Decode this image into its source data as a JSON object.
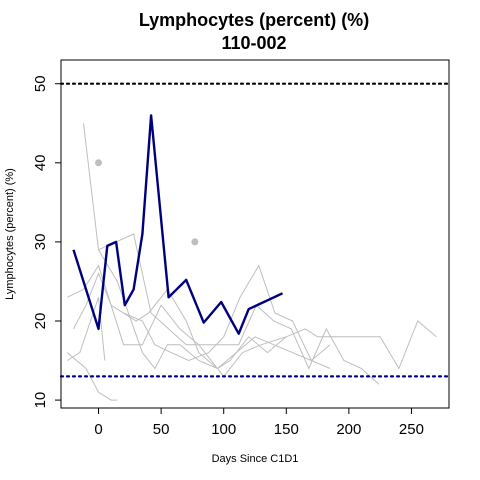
{
  "chart_data": {
    "type": "line",
    "title": "Lymphocytes (percent) (%)",
    "subtitle": "110-002",
    "xlabel": "Days Since C1D1",
    "ylabel": "Lymphocytes (percent) (%)",
    "xlim": [
      -30,
      280
    ],
    "ylim": [
      9,
      53
    ],
    "xticks": [
      0,
      50,
      100,
      150,
      200,
      250
    ],
    "yticks": [
      10,
      20,
      30,
      40,
      50
    ],
    "grid": false,
    "reference_lines": [
      {
        "y": 50,
        "color": "#000000",
        "style": "dotted"
      },
      {
        "y": 13,
        "color": "#00008b",
        "style": "dotted"
      }
    ],
    "background_series": [
      {
        "color": "#bebebe",
        "points": [
          [
            -12,
            45
          ],
          [
            0,
            29
          ],
          [
            14,
            30
          ],
          [
            28,
            31
          ],
          [
            42,
            21
          ],
          [
            56,
            19
          ],
          [
            70,
            17
          ],
          [
            84,
            17
          ],
          [
            112,
            17
          ],
          [
            126,
            22
          ],
          [
            140,
            20
          ],
          [
            154,
            19
          ],
          [
            168,
            14
          ],
          [
            182,
            19
          ],
          [
            196,
            15
          ],
          [
            210,
            14
          ],
          [
            224,
            12
          ]
        ]
      },
      {
        "color": "#bebebe",
        "points": [
          [
            -20,
            19
          ],
          [
            -10,
            22
          ],
          [
            0,
            26
          ],
          [
            10,
            22
          ],
          [
            20,
            17
          ],
          [
            35,
            17
          ],
          [
            50,
            22
          ],
          [
            65,
            19
          ],
          [
            80,
            17
          ],
          [
            90,
            15
          ],
          [
            100,
            13
          ],
          [
            115,
            16
          ],
          [
            130,
            17
          ],
          [
            150,
            18
          ],
          [
            165,
            19
          ],
          [
            175,
            18
          ],
          [
            190,
            18
          ],
          [
            210,
            18
          ],
          [
            225,
            18
          ],
          [
            240,
            14
          ],
          [
            255,
            20
          ],
          [
            270,
            18
          ]
        ]
      },
      {
        "color": "#bebebe",
        "points": [
          [
            -25,
            23
          ],
          [
            -12,
            24
          ],
          [
            0,
            27
          ],
          [
            10,
            22
          ],
          [
            20,
            21
          ],
          [
            30,
            20
          ],
          [
            40,
            21
          ],
          [
            55,
            24
          ],
          [
            70,
            20
          ],
          [
            80,
            16
          ],
          [
            95,
            14
          ],
          [
            110,
            16
          ],
          [
            125,
            18
          ],
          [
            140,
            17
          ],
          [
            155,
            16
          ],
          [
            170,
            15
          ],
          [
            185,
            14
          ]
        ]
      },
      {
        "color": "#bebebe",
        "points": [
          [
            -25,
            16
          ],
          [
            -10,
            14
          ],
          [
            0,
            11
          ],
          [
            10,
            10
          ],
          [
            15,
            10
          ]
        ]
      },
      {
        "color": "#bebebe",
        "points": [
          [
            -25,
            15
          ],
          [
            -15,
            16
          ],
          [
            0,
            23
          ],
          [
            5,
            15
          ]
        ]
      },
      {
        "color": "#bebebe",
        "points": [
          [
            0,
            29
          ],
          [
            15,
            25
          ],
          [
            35,
            16
          ],
          [
            45,
            14
          ],
          [
            55,
            17
          ],
          [
            65,
            17
          ],
          [
            80,
            15
          ],
          [
            95,
            14
          ],
          [
            105,
            15
          ],
          [
            120,
            18
          ],
          [
            135,
            16
          ],
          [
            150,
            18
          ]
        ]
      },
      {
        "color": "#bebebe",
        "points": [
          [
            20,
            21
          ],
          [
            35,
            20
          ],
          [
            45,
            17
          ],
          [
            58,
            16
          ],
          [
            72,
            15
          ],
          [
            88,
            16
          ],
          [
            100,
            18
          ],
          [
            113,
            23
          ],
          [
            128,
            27
          ],
          [
            141,
            21
          ],
          [
            155,
            20
          ],
          [
            170,
            15
          ],
          [
            185,
            17
          ]
        ]
      }
    ],
    "background_points": [
      {
        "x": 0,
        "y": 40,
        "color": "#bebebe"
      },
      {
        "x": 77,
        "y": 30,
        "color": "#bebebe"
      }
    ],
    "series": [
      {
        "color": "#00007f",
        "x": [
          -20,
          0,
          7,
          14,
          21,
          28,
          35,
          42,
          56,
          70,
          84,
          98,
          112,
          120,
          147
        ],
        "y": [
          29,
          19,
          29.5,
          30,
          22,
          24,
          31,
          46,
          23,
          25.2,
          19.8,
          22.4,
          18.4,
          21.5,
          23.5
        ]
      }
    ]
  }
}
